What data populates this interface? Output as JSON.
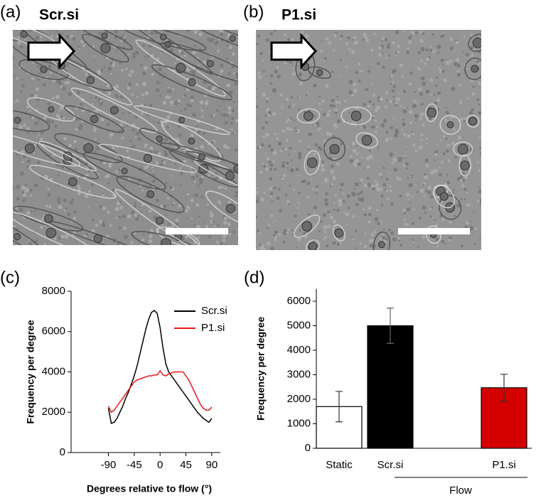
{
  "panels": [
    {
      "label": "(a)",
      "title": "Scr.si"
    },
    {
      "label": "(b)",
      "title": "P1.si"
    }
  ],
  "chart_data": [
    {
      "type": "line",
      "panel_label": "(c)",
      "y_label": "Frequency per degree",
      "x_label": "Degrees relative to flow (°)",
      "x": [
        -90,
        -85,
        -80,
        -75,
        -70,
        -65,
        -60,
        -55,
        -50,
        -45,
        -40,
        -35,
        -30,
        -25,
        -20,
        -15,
        -10,
        -5,
        0,
        5,
        10,
        15,
        20,
        25,
        30,
        35,
        40,
        45,
        50,
        55,
        60,
        65,
        70,
        75,
        80,
        85,
        90
      ],
      "series": [
        {
          "name": "Scr.si",
          "color": "#000000",
          "values": [
            2200,
            1450,
            1500,
            1700,
            2000,
            2300,
            2700,
            3000,
            3400,
            3800,
            4300,
            4900,
            5500,
            6100,
            6600,
            6950,
            7050,
            6900,
            6200,
            5200,
            4400,
            4000,
            3800,
            3600,
            3400,
            3200,
            3000,
            2800,
            2600,
            2400,
            2200,
            2000,
            1850,
            1700,
            1600,
            1500,
            1700
          ]
        },
        {
          "name": "P1.si",
          "color": "#e8161b",
          "values": [
            2300,
            2000,
            2100,
            2300,
            2500,
            2700,
            2900,
            3100,
            3300,
            3500,
            3600,
            3650,
            3700,
            3750,
            3800,
            3800,
            3850,
            3850,
            4050,
            3850,
            3800,
            3900,
            3950,
            4000,
            4000,
            4000,
            4000,
            3800,
            3600,
            3300,
            3000,
            2700,
            2400,
            2200,
            2100,
            2100,
            2250
          ]
        }
      ],
      "xlim": [
        -155,
        105
      ],
      "xticks": [
        -90,
        -45,
        0,
        45,
        90
      ],
      "ylim": [
        0,
        8000
      ],
      "yticks": [
        0,
        2000,
        4000,
        6000,
        8000
      ],
      "legend": "top-right"
    },
    {
      "type": "bar",
      "panel_label": "(d)",
      "y_label": "Frequency per degree",
      "categories": [
        "Static",
        "Scr.si",
        "P1.si"
      ],
      "values": [
        1700,
        5000,
        2470
      ],
      "errors": [
        620,
        720,
        550
      ],
      "colors": [
        "#ffffff",
        "#000000",
        "#d40000"
      ],
      "group_label": "Flow",
      "ylim": [
        0,
        6500
      ],
      "yticks": [
        0,
        1000,
        2000,
        3000,
        4000,
        5000,
        6000
      ]
    }
  ]
}
